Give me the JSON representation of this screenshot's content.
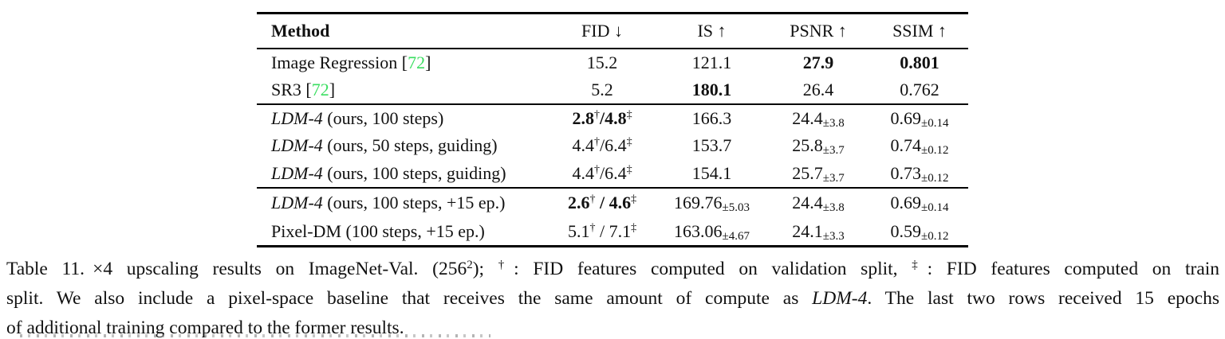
{
  "table": {
    "header": {
      "method": "Method",
      "fid": "FID ↓",
      "is": "IS ↑",
      "psnr": "PSNR ↑",
      "ssim": "SSIM ↑"
    },
    "citation": {
      "open": "[",
      "num": "72",
      "close": "]"
    },
    "s1": [
      {
        "name": "Image Regression ",
        "fid": "15.2",
        "is": "121.1",
        "psnr": "27.9",
        "ssim": "0.801"
      },
      {
        "name": "SR3 ",
        "fid": "5.2",
        "is": "180.1",
        "psnr": "26.4",
        "ssim": "0.762"
      }
    ],
    "s2": [
      {
        "name_it": "LDM-4",
        "name_rest": " (ours, 100 steps)",
        "fid_a": "2.8",
        "fid_s1": "†",
        "fid_sep": "/",
        "fid_b": "4.8",
        "fid_s2": "‡",
        "is": "166.3",
        "psnr": "24.4",
        "psnr_sub": "±3.8",
        "ssim": "0.69",
        "ssim_sub": "±0.14"
      },
      {
        "name_it": "LDM-4",
        "name_rest": " (ours, 50 steps, guiding)",
        "fid_a": "4.4",
        "fid_s1": "†",
        "fid_sep": "/",
        "fid_b": "6.4",
        "fid_s2": "‡",
        "is": "153.7",
        "psnr": "25.8",
        "psnr_sub": "±3.7",
        "ssim": "0.74",
        "ssim_sub": "±0.12"
      },
      {
        "name_it": "LDM-4",
        "name_rest": " (ours, 100 steps, guiding)",
        "fid_a": "4.4",
        "fid_s1": "†",
        "fid_sep": "/",
        "fid_b": "6.4",
        "fid_s2": "‡",
        "is": "154.1",
        "psnr": "25.7",
        "psnr_sub": "±3.7",
        "ssim": "0.73",
        "ssim_sub": "±0.12"
      }
    ],
    "s3": [
      {
        "name_it": "LDM-4",
        "name_rest": " (ours, 100 steps, +15 ep.)",
        "fid_a": "2.6",
        "fid_s1": "†",
        "fid_sep": " / ",
        "fid_b": "4.6",
        "fid_s2": "‡",
        "is": "169.76",
        "is_sub": "±5.03",
        "psnr": "24.4",
        "psnr_sub": "±3.8",
        "ssim": "0.69",
        "ssim_sub": "±0.14"
      },
      {
        "name": "Pixel-DM (100 steps, +15 ep.)",
        "fid_a": "5.1",
        "fid_s1": "†",
        "fid_sep": " / ",
        "fid_b": "7.1",
        "fid_s2": "‡",
        "is": "163.06",
        "is_sub": "±4.67",
        "psnr": "24.1",
        "psnr_sub": "±3.3",
        "ssim": "0.59",
        "ssim_sub": "±0.12"
      }
    ]
  },
  "caption": {
    "l1": {
      "a": "Table 11.",
      "b": "×4 upscaling results on ImageNet-Val. (256",
      "sup1": "2",
      "c": "); ",
      "sup2": "†",
      "d": ": FID features computed on validation split, ",
      "sup3": "‡",
      "e": ": FID features computed on train"
    },
    "l2": {
      "a": "split. We also include a pixel-space baseline that receives the same amount of compute as ",
      "it": "LDM-4",
      "b": ". The last two rows received 15 epochs"
    },
    "l3": "of additional training compared to the former results."
  }
}
